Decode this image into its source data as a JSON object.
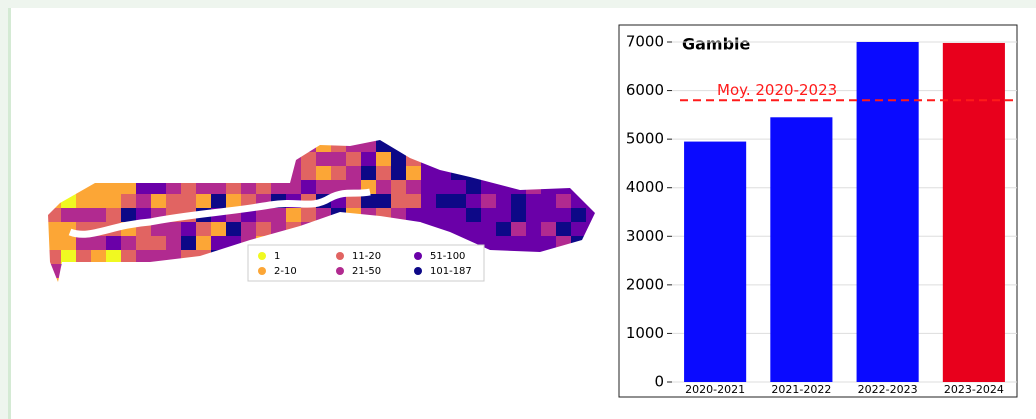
{
  "map_legend": {
    "items": [
      {
        "name": "1",
        "color": "#f0f921"
      },
      {
        "name": "2-10",
        "color": "#fca636"
      },
      {
        "name": "11-20",
        "color": "#e16462"
      },
      {
        "name": "21-50",
        "color": "#b12a90"
      },
      {
        "name": "51-100",
        "color": "#6a00a8"
      },
      {
        "name": "101-187",
        "color": "#0d0887"
      }
    ]
  },
  "chart_data": {
    "type": "bar",
    "title": "Gambie",
    "categories": [
      "2020-2021",
      "2021-2022",
      "2022-2023",
      "2023-2024"
    ],
    "values": [
      4950,
      5450,
      7000,
      6980
    ],
    "colors": [
      "#0a0aff",
      "#0a0aff",
      "#0a0aff",
      "#e8001c"
    ],
    "mean": {
      "value": 5800,
      "label": "Moy. 2020-2023",
      "color": "#ff1a1a"
    },
    "ylim": [
      0,
      7350
    ],
    "yticks": [
      0,
      1000,
      2000,
      3000,
      4000,
      5000,
      6000,
      7000
    ],
    "grid": true
  }
}
